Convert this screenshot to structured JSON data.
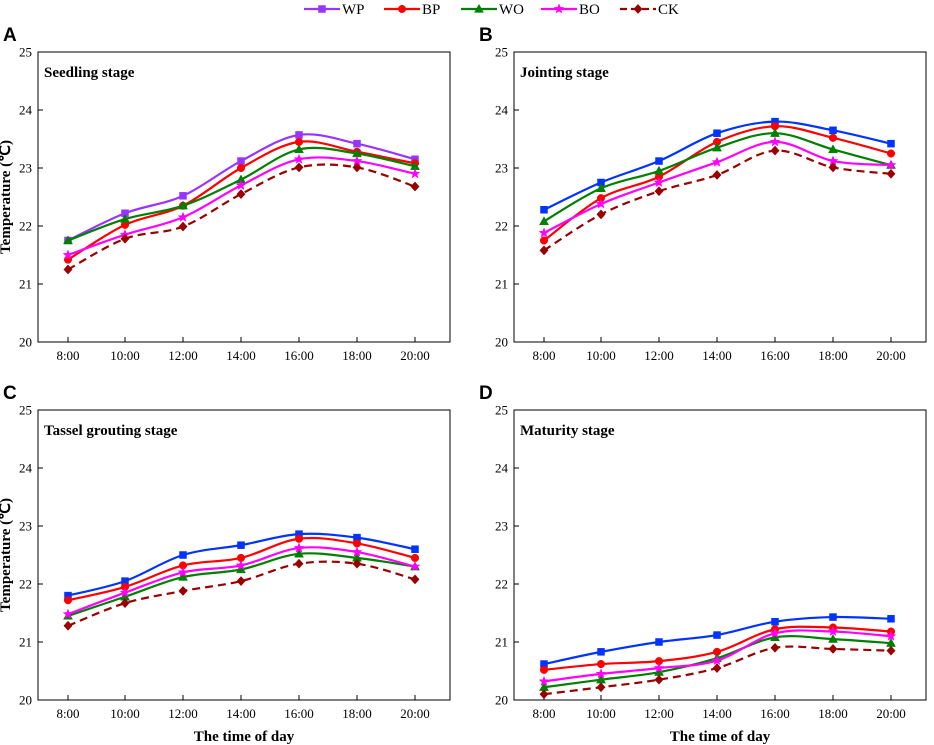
{
  "chart_data": [
    {
      "type": "line",
      "panel": "A",
      "title": "Seedling stage",
      "xlabel": "",
      "ylabel": "Temperature (℃)",
      "ylim": [
        20,
        25
      ],
      "yticks": [
        "20",
        "21",
        "22",
        "23",
        "24",
        "25"
      ],
      "categories": [
        "8:00",
        "10:00",
        "12:00",
        "14:00",
        "16:00",
        "18:00",
        "20:00"
      ],
      "series": [
        {
          "name": "WP",
          "values": [
            21.75,
            22.22,
            22.52,
            23.12,
            23.57,
            23.42,
            23.15
          ]
        },
        {
          "name": "BP",
          "values": [
            21.42,
            22.02,
            22.35,
            23.0,
            23.45,
            23.28,
            23.08
          ]
        },
        {
          "name": "WO",
          "values": [
            21.75,
            22.12,
            22.35,
            22.8,
            23.32,
            23.25,
            23.03
          ]
        },
        {
          "name": "BO",
          "values": [
            21.5,
            21.85,
            22.15,
            22.7,
            23.15,
            23.12,
            22.9
          ]
        },
        {
          "name": "CK",
          "values": [
            21.25,
            21.78,
            21.99,
            22.55,
            23.01,
            23.01,
            22.68
          ]
        }
      ]
    },
    {
      "type": "line",
      "panel": "B",
      "title": "Jointing stage",
      "xlabel": "",
      "ylabel": "",
      "ylim": [
        20,
        25
      ],
      "yticks": [
        "20",
        "21",
        "22",
        "23",
        "24",
        "25"
      ],
      "categories": [
        "8:00",
        "10:00",
        "12:00",
        "14:00",
        "16:00",
        "18:00",
        "20:00"
      ],
      "series": [
        {
          "name": "WP",
          "values": [
            22.28,
            22.75,
            23.12,
            23.6,
            23.8,
            23.65,
            23.42
          ]
        },
        {
          "name": "BP",
          "values": [
            21.75,
            22.48,
            22.85,
            23.45,
            23.72,
            23.52,
            23.25
          ]
        },
        {
          "name": "WO",
          "values": [
            22.08,
            22.65,
            22.95,
            23.35,
            23.6,
            23.32,
            23.05
          ]
        },
        {
          "name": "BO",
          "values": [
            21.88,
            22.38,
            22.75,
            23.1,
            23.45,
            23.12,
            23.05
          ]
        },
        {
          "name": "CK",
          "values": [
            21.58,
            22.2,
            22.6,
            22.88,
            23.3,
            23.01,
            22.9
          ]
        }
      ]
    },
    {
      "type": "line",
      "panel": "C",
      "title": "Tassel grouting stage",
      "xlabel": "The time of day",
      "ylabel": "Temperature (℃)",
      "ylim": [
        20,
        25
      ],
      "yticks": [
        "20",
        "21",
        "22",
        "23",
        "24",
        "25"
      ],
      "categories": [
        "8:00",
        "10:00",
        "12:00",
        "14:00",
        "16:00",
        "18:00",
        "20:00"
      ],
      "series": [
        {
          "name": "WP",
          "values": [
            21.8,
            22.05,
            22.5,
            22.67,
            22.86,
            22.8,
            22.6
          ]
        },
        {
          "name": "BP",
          "values": [
            21.72,
            21.95,
            22.32,
            22.45,
            22.78,
            22.7,
            22.45
          ]
        },
        {
          "name": "WO",
          "values": [
            21.45,
            21.78,
            22.12,
            22.25,
            22.52,
            22.45,
            22.3
          ]
        },
        {
          "name": "BO",
          "values": [
            21.48,
            21.85,
            22.2,
            22.32,
            22.62,
            22.55,
            22.3
          ]
        },
        {
          "name": "CK",
          "values": [
            21.28,
            21.67,
            21.88,
            22.05,
            22.35,
            22.35,
            22.08
          ]
        }
      ]
    },
    {
      "type": "line",
      "panel": "D",
      "title": "Maturity stage",
      "xlabel": "The time of day",
      "ylabel": "",
      "ylim": [
        20,
        25
      ],
      "yticks": [
        "20",
        "21",
        "22",
        "23",
        "24",
        "25"
      ],
      "categories": [
        "8:00",
        "10:00",
        "12:00",
        "14:00",
        "16:00",
        "18:00",
        "20:00"
      ],
      "series": [
        {
          "name": "WP",
          "values": [
            20.62,
            20.83,
            21.0,
            21.12,
            21.35,
            21.43,
            21.4
          ]
        },
        {
          "name": "BP",
          "values": [
            20.52,
            20.62,
            20.67,
            20.83,
            21.22,
            21.25,
            21.18
          ]
        },
        {
          "name": "WO",
          "values": [
            20.22,
            20.35,
            20.48,
            20.72,
            21.08,
            21.05,
            20.98
          ]
        },
        {
          "name": "BO",
          "values": [
            20.32,
            20.45,
            20.55,
            20.68,
            21.15,
            21.18,
            21.1
          ]
        },
        {
          "name": "CK",
          "values": [
            20.1,
            20.22,
            20.35,
            20.55,
            20.9,
            20.88,
            20.85
          ]
        }
      ]
    }
  ],
  "legend": {
    "items": [
      {
        "name": "WP",
        "color": "#9933ff",
        "marker": "square",
        "dashed": false
      },
      {
        "name": "BP",
        "color": "#ff0000",
        "marker": "circle",
        "dashed": false
      },
      {
        "name": "WO",
        "color": "#008000",
        "marker": "triangle",
        "dashed": false
      },
      {
        "name": "BO",
        "color": "#ff00ff",
        "marker": "star",
        "dashed": false
      },
      {
        "name": "CK",
        "color": "#990000",
        "marker": "diamond",
        "dashed": true
      }
    ]
  },
  "panel_series_colors": {
    "A": {
      "WP": "#9933ff",
      "BP": "#ff0000",
      "WO": "#008000",
      "BO": "#ff00ff",
      "CK": "#990000"
    },
    "B": {
      "WP": "#0033ff",
      "BP": "#ff0000",
      "WO": "#008000",
      "BO": "#ff00ff",
      "CK": "#990000"
    },
    "C": {
      "WP": "#0033ff",
      "BP": "#ff0000",
      "WO": "#008000",
      "BO": "#ff00ff",
      "CK": "#990000"
    },
    "D": {
      "WP": "#0033ff",
      "BP": "#ff0000",
      "WO": "#008000",
      "BO": "#ff00ff",
      "CK": "#990000"
    }
  }
}
